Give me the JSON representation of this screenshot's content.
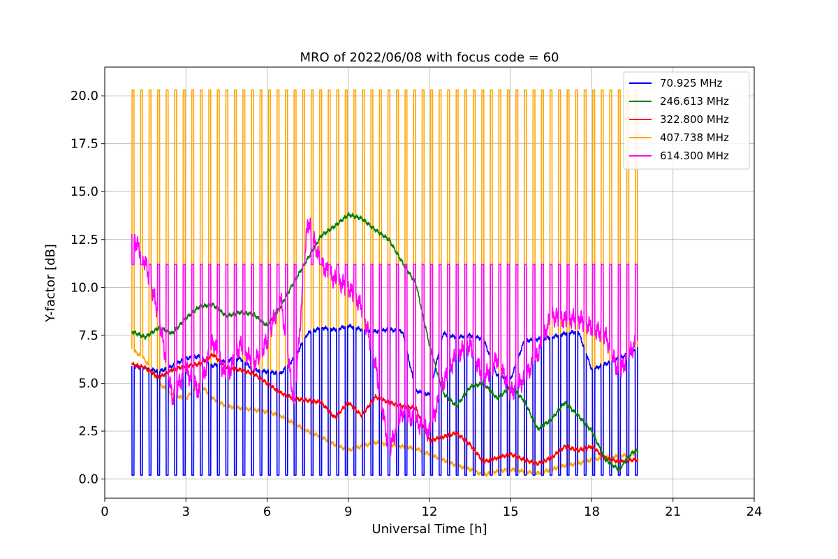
{
  "chart_data": {
    "type": "line",
    "title": "MRO of 2022/06/08 with focus code = 60",
    "xlabel": "Universal Time [h]",
    "ylabel": "Y-factor [dB]",
    "xlim": [
      0,
      24
    ],
    "ylim": [
      -1.0,
      21.5
    ],
    "xticks": [
      0,
      3,
      6,
      9,
      12,
      15,
      18,
      21,
      24
    ],
    "xtick_labels": [
      "0",
      "3",
      "6",
      "9",
      "12",
      "15",
      "18",
      "21",
      "24"
    ],
    "yticks": [
      0,
      2.5,
      5,
      7.5,
      10,
      12.5,
      15,
      17.5,
      20
    ],
    "ytick_labels": [
      "0.0",
      "2.5",
      "5.0",
      "7.5",
      "10.0",
      "12.5",
      "15.0",
      "17.5",
      "20.0"
    ],
    "grid": true,
    "legend_position": "top-right",
    "calibration_pulses": {
      "start_h": 1.0,
      "end_h": 19.6,
      "count": 60
    },
    "series": [
      {
        "name": " 70.925 MHz",
        "color": "#0000ff",
        "pulse_level": 0.2,
        "x": [
          1.0,
          1.5,
          2.0,
          2.5,
          3.0,
          3.5,
          4.0,
          4.5,
          5.0,
          5.5,
          6.0,
          6.5,
          7.0,
          7.5,
          8.0,
          8.5,
          9.0,
          9.5,
          10.0,
          10.5,
          11.0,
          11.5,
          12.0,
          12.5,
          13.0,
          13.5,
          14.0,
          14.5,
          15.0,
          15.5,
          16.0,
          16.5,
          17.0,
          17.5,
          18.0,
          18.5,
          19.0,
          19.5,
          19.7
        ],
        "values": [
          5.9,
          5.8,
          5.6,
          5.9,
          6.3,
          6.4,
          5.9,
          6.2,
          6.3,
          5.7,
          5.6,
          5.5,
          6.3,
          7.6,
          7.9,
          7.8,
          8.0,
          7.8,
          7.7,
          7.8,
          7.7,
          4.6,
          4.4,
          7.6,
          7.4,
          7.5,
          7.3,
          5.4,
          5.2,
          7.2,
          7.3,
          7.4,
          7.6,
          7.7,
          5.7,
          6.0,
          6.3,
          6.6,
          6.9
        ]
      },
      {
        "name": "246.613 MHz",
        "color": "#008000",
        "pulse_level": null,
        "x": [
          1.0,
          1.5,
          2.0,
          2.5,
          3.0,
          3.5,
          4.0,
          4.5,
          5.0,
          5.5,
          6.0,
          6.5,
          7.0,
          7.5,
          8.0,
          8.5,
          9.0,
          9.5,
          10.0,
          10.5,
          11.0,
          11.5,
          12.0,
          12.5,
          13.0,
          13.5,
          14.0,
          14.5,
          15.0,
          15.5,
          16.0,
          16.5,
          17.0,
          17.5,
          18.0,
          18.5,
          19.0,
          19.5,
          19.7
        ],
        "values": [
          7.7,
          7.4,
          7.9,
          7.6,
          8.4,
          9.0,
          9.1,
          8.5,
          8.7,
          8.6,
          8.0,
          9.0,
          10.3,
          11.5,
          12.7,
          13.2,
          13.8,
          13.6,
          13.0,
          12.5,
          11.3,
          10.2,
          7.0,
          4.5,
          3.8,
          4.8,
          5.0,
          4.2,
          4.8,
          4.1,
          2.6,
          3.1,
          4.0,
          3.3,
          2.5,
          1.0,
          0.5,
          1.4,
          1.5
        ]
      },
      {
        "name": "322.800 MHz",
        "color": "#ff0000",
        "pulse_level": null,
        "x": [
          1.0,
          1.5,
          2.0,
          2.5,
          3.0,
          3.5,
          4.0,
          4.5,
          5.0,
          5.5,
          6.0,
          6.5,
          7.0,
          7.5,
          8.0,
          8.5,
          9.0,
          9.5,
          10.0,
          10.5,
          11.0,
          11.5,
          12.0,
          12.5,
          13.0,
          13.5,
          14.0,
          14.5,
          15.0,
          15.5,
          16.0,
          16.5,
          17.0,
          17.5,
          18.0,
          18.5,
          19.0,
          19.5,
          19.7
        ],
        "values": [
          6.0,
          5.8,
          5.3,
          5.7,
          5.9,
          6.0,
          6.5,
          5.8,
          5.7,
          5.5,
          5.0,
          4.5,
          4.2,
          4.1,
          4.0,
          3.2,
          4.0,
          3.3,
          4.3,
          4.0,
          3.8,
          3.7,
          2.0,
          2.2,
          2.4,
          1.8,
          0.9,
          1.1,
          1.3,
          1.0,
          0.8,
          1.1,
          1.7,
          1.5,
          1.7,
          1.1,
          0.9,
          1.0,
          1.0
        ]
      },
      {
        "name": "407.738 MHz",
        "color": "#ffa500",
        "pulse_level": 20.3,
        "x": [
          1.0,
          1.5,
          2.0,
          2.5,
          3.0,
          3.5,
          4.0,
          4.5,
          5.0,
          5.5,
          6.0,
          6.5,
          7.0,
          7.5,
          8.0,
          8.5,
          9.0,
          9.5,
          10.0,
          10.5,
          11.0,
          11.5,
          12.0,
          12.5,
          13.0,
          13.5,
          14.0,
          14.5,
          15.0,
          15.5,
          16.0,
          16.5,
          17.0,
          17.5,
          18.0,
          18.5,
          19.0,
          19.5,
          19.7
        ],
        "values": [
          6.8,
          6.2,
          5.0,
          4.4,
          4.2,
          5.0,
          4.2,
          3.8,
          3.7,
          3.6,
          3.5,
          3.3,
          2.9,
          2.5,
          2.2,
          1.8,
          1.5,
          1.7,
          1.9,
          1.8,
          1.7,
          1.6,
          1.3,
          1.0,
          0.7,
          0.5,
          0.2,
          0.4,
          0.5,
          0.4,
          0.3,
          0.5,
          0.7,
          0.8,
          1.0,
          1.1,
          1.2,
          1.3,
          1.3
        ]
      },
      {
        "name": "614.300 MHz",
        "color": "#ff00ff",
        "pulse_level": 11.2,
        "x": [
          1.0,
          1.5,
          2.0,
          2.5,
          3.0,
          3.5,
          4.0,
          4.5,
          5.0,
          5.5,
          6.0,
          6.5,
          7.0,
          7.5,
          8.0,
          8.5,
          9.0,
          9.5,
          10.0,
          10.5,
          11.0,
          11.5,
          12.0,
          12.5,
          13.0,
          13.5,
          14.0,
          14.5,
          15.0,
          15.5,
          16.0,
          16.5,
          17.0,
          17.5,
          18.0,
          18.5,
          19.0,
          19.5,
          19.7
        ],
        "values": [
          12.8,
          11.3,
          8.5,
          4.2,
          5.7,
          4.5,
          7.2,
          5.2,
          7.0,
          6.0,
          7.2,
          9.5,
          3.8,
          13.5,
          11.2,
          10.4,
          10.0,
          9.0,
          6.0,
          1.5,
          3.5,
          3.0,
          2.4,
          5.0,
          6.5,
          7.0,
          5.2,
          6.3,
          4.5,
          5.2,
          6.5,
          8.5,
          8.3,
          8.4,
          7.9,
          7.5,
          5.5,
          6.8,
          7.3
        ]
      }
    ]
  }
}
